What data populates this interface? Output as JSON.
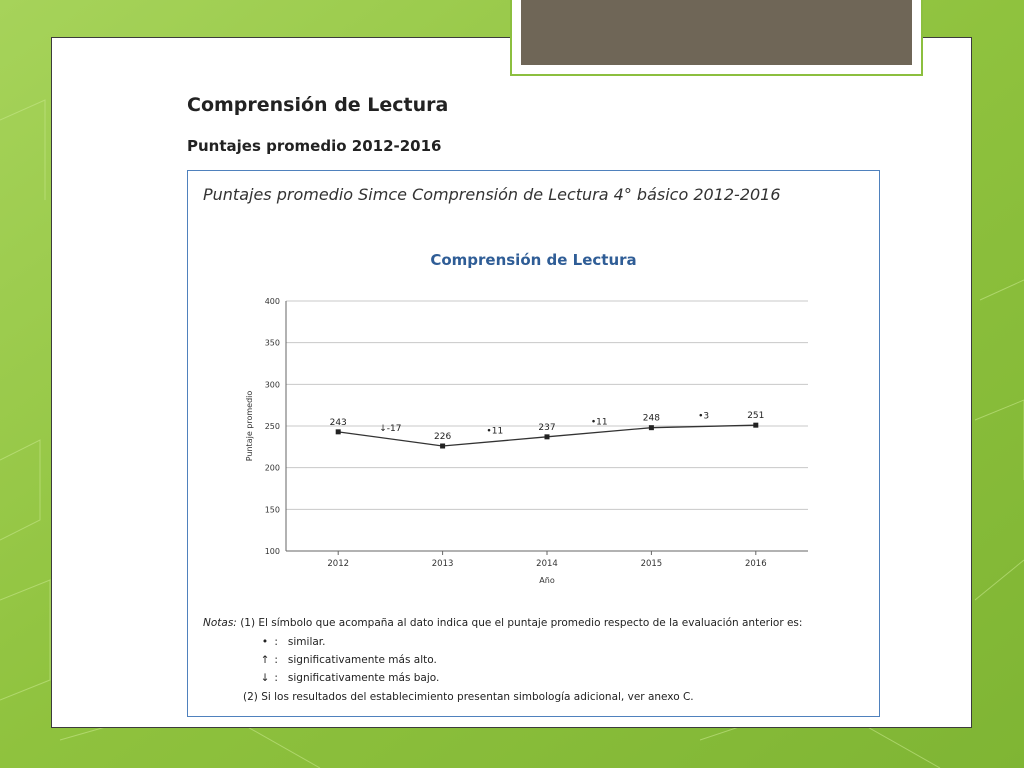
{
  "slide": {
    "heading": "Comprensión de Lectura",
    "subheading": "Puntajes promedio 2012-2016"
  },
  "panel": {
    "title": "Puntajes promedio Simce Comprensión de Lectura 4° básico 2012-2016"
  },
  "chart_data": {
    "type": "line",
    "title": "Comprensión de Lectura",
    "xlabel": "Año",
    "ylabel": "Puntaje promedio",
    "categories": [
      "2012",
      "2013",
      "2014",
      "2015",
      "2016"
    ],
    "series": [
      {
        "values": [
          243,
          226,
          237,
          248,
          251
        ]
      }
    ],
    "ylim": [
      100,
      400
    ],
    "yticks": [
      "100",
      "150",
      "200",
      "250",
      "300",
      "350",
      "400"
    ],
    "data_labels": [
      "243",
      "226",
      "237",
      "248",
      "251"
    ],
    "change_annotations": [
      {
        "symbol": "↓",
        "text": "-17"
      },
      {
        "symbol": "•",
        "text": "11"
      },
      {
        "symbol": "•",
        "text": "11"
      },
      {
        "symbol": "•",
        "text": "3"
      }
    ],
    "grid": true,
    "colors": {
      "line": "#333333",
      "grid": "#c8c8c8",
      "title": "#2f5d96"
    }
  },
  "notes": {
    "label": "Notas:",
    "n1_num": "(1)",
    "n1_text": "El símbolo que acompaña al dato indica que el puntaje promedio respecto de la evaluación anterior es:",
    "sym_similar": "•",
    "sym_similar_sep": ":",
    "sym_similar_text": "similar.",
    "sym_up": "↑",
    "sym_up_sep": ":",
    "sym_up_text": "significativamente más alto.",
    "sym_down": "↓",
    "sym_down_sep": ":",
    "sym_down_text": "significativamente más bajo.",
    "n2_num": "(2)",
    "n2_text": "Si los resultados del establecimiento presentan simbología adicional, ver anexo C."
  },
  "theme": {
    "background_green": "#9fcf4f",
    "frame_border": "#3c3c3c",
    "panel_border": "#4f81bd",
    "tab_fill": "#6f6657"
  }
}
